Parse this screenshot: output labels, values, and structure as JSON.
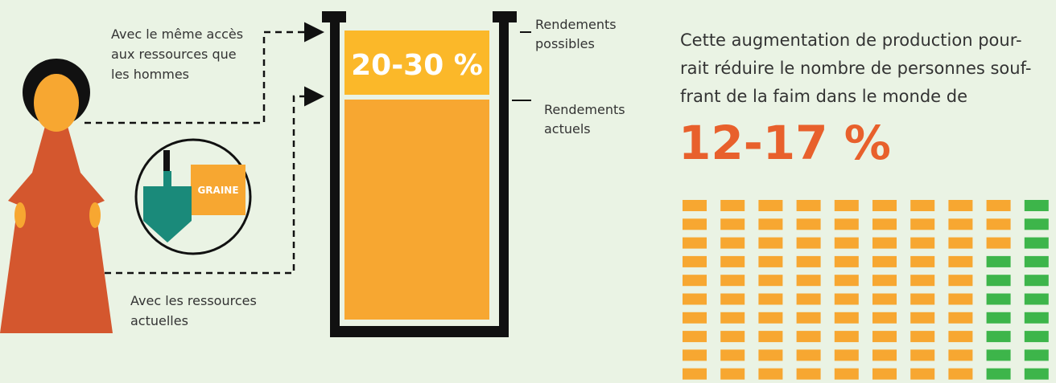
{
  "labels": {
    "equal_access": [
      "Avec le même accès",
      "aux ressources que",
      "les hommes"
    ],
    "current_resources": [
      "Avec les ressources",
      "actuelles"
    ],
    "seed": "GRAINE"
  },
  "container": {
    "gain": "20-30 %",
    "possible_yields": [
      "Rendements",
      "possibles"
    ],
    "current_yields": [
      "Rendements",
      "actuels"
    ]
  },
  "statement": {
    "lines": [
      "Cette augmentation de production pour-",
      "rait réduire le nombre de personnes souf-",
      "frant de la faim dans le monde de"
    ],
    "figure": "12-17 %"
  }
}
